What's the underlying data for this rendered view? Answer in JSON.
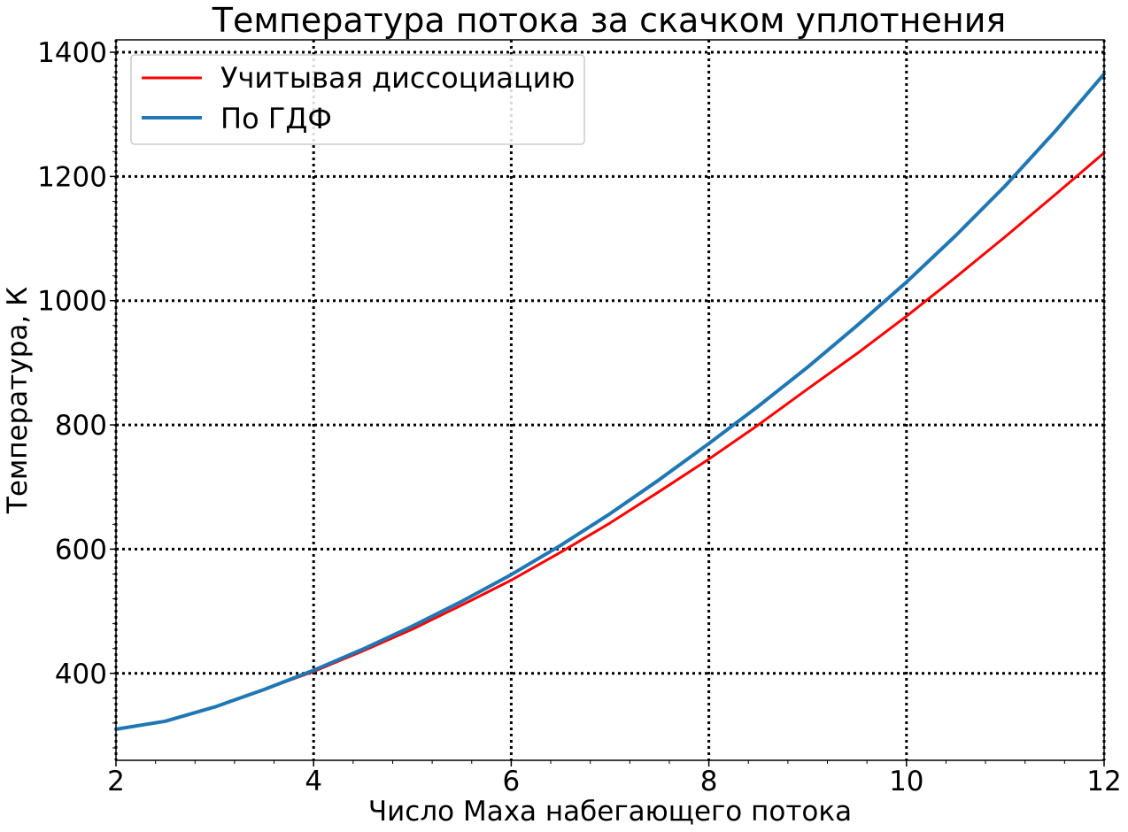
{
  "chart_data": {
    "type": "line",
    "title": "Температура потока за скачком уплотнения",
    "xlabel": "Число Маха набегающего потока",
    "ylabel": "Температура, К",
    "xlim": [
      2,
      12
    ],
    "ylim": [
      260,
      1420
    ],
    "xticks": [
      2,
      4,
      6,
      8,
      10,
      12
    ],
    "yticks": [
      400,
      600,
      800,
      1000,
      1200,
      1400
    ],
    "grid": true,
    "grid_style": "dotted",
    "legend_position": "upper-left",
    "series": [
      {
        "name": "Учитывая диссоциацию",
        "color": "#ff0000",
        "x": [
          2,
          2.5,
          3,
          3.5,
          4,
          4.5,
          5,
          5.5,
          6,
          6.5,
          7,
          7.5,
          8,
          8.5,
          9,
          9.5,
          10,
          10.5,
          11,
          11.5,
          12
        ],
        "y": [
          310,
          323,
          346,
          374,
          403,
          436,
          471,
          510,
          550,
          595,
          642,
          693,
          745,
          800,
          858,
          915,
          975,
          1038,
          1103,
          1170,
          1238
        ]
      },
      {
        "name": "По ГДФ",
        "color": "#1f77b4",
        "x": [
          2,
          2.5,
          3,
          3.5,
          4,
          4.5,
          5,
          5.5,
          6,
          6.5,
          7,
          7.5,
          8,
          8.5,
          9,
          9.5,
          10,
          10.5,
          11,
          11.5,
          12
        ],
        "y": [
          310,
          323,
          346,
          374,
          405,
          439,
          476,
          516,
          559,
          606,
          657,
          712,
          770,
          830,
          893,
          960,
          1030,
          1105,
          1185,
          1272,
          1365
        ]
      }
    ]
  }
}
